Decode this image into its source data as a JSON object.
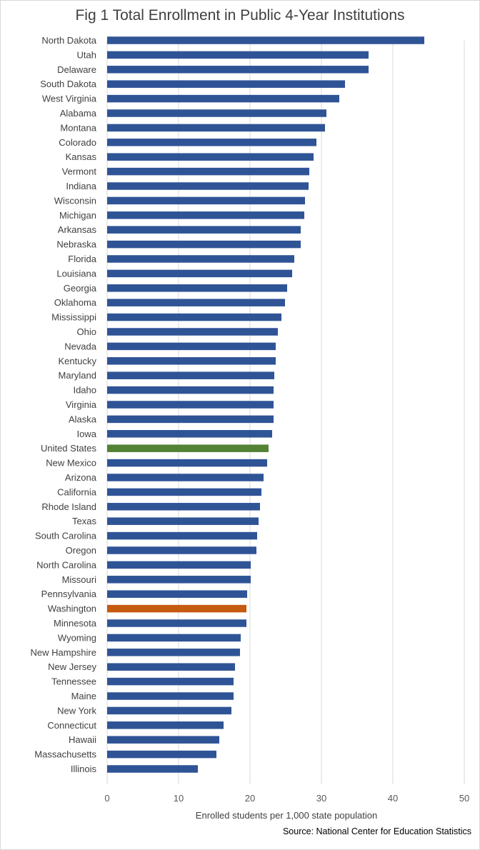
{
  "chart_data": {
    "type": "bar",
    "orientation": "horizontal",
    "title": "Fig 1 Total Enrollment in Public 4-Year Institutions",
    "xlabel": "Enrolled students per 1,000 state population",
    "ylabel": "",
    "xlim": [
      0,
      50
    ],
    "ticks": [
      "0",
      "10",
      "20",
      "30",
      "40",
      "50"
    ],
    "grid": true,
    "source": "Source: National Center for Education Statistics",
    "colors": {
      "default": "#2F5496",
      "United States": "#548235",
      "Washington": "#C55A11"
    },
    "categories": [
      "North Dakota",
      "Utah",
      "Delaware",
      "South Dakota",
      "West Virginia",
      "Alabama",
      "Montana",
      "Colorado",
      "Kansas",
      "Vermont",
      "Indiana",
      "Wisconsin",
      "Michigan",
      "Arkansas",
      "Nebraska",
      "Florida",
      "Louisiana",
      "Georgia",
      "Oklahoma",
      "Mississippi",
      "Ohio",
      "Nevada",
      "Kentucky",
      "Maryland",
      "Idaho",
      "Virginia",
      "Alaska",
      "Iowa",
      "United States",
      "New Mexico",
      "Arizona",
      "California",
      "Rhode Island",
      "Texas",
      "South Carolina",
      "Oregon",
      "North Carolina",
      "Missouri",
      "Pennsylvania",
      "Washington",
      "Minnesota",
      "Wyoming",
      "New Hampshire",
      "New Jersey",
      "Tennessee",
      "Maine",
      "New York",
      "Connecticut",
      "Hawaii",
      "Massachusetts",
      "Illinois"
    ],
    "values": [
      44.4,
      36.6,
      36.6,
      33.3,
      32.5,
      30.7,
      30.5,
      29.3,
      28.9,
      28.3,
      28.2,
      27.7,
      27.6,
      27.1,
      27.1,
      26.2,
      25.9,
      25.2,
      24.9,
      24.4,
      23.9,
      23.6,
      23.6,
      23.4,
      23.3,
      23.3,
      23.3,
      23.1,
      22.6,
      22.4,
      21.9,
      21.6,
      21.4,
      21.2,
      21.0,
      20.9,
      20.1,
      20.1,
      19.6,
      19.5,
      19.5,
      18.7,
      18.6,
      17.9,
      17.7,
      17.7,
      17.4,
      16.3,
      15.7,
      15.3,
      12.7
    ]
  }
}
